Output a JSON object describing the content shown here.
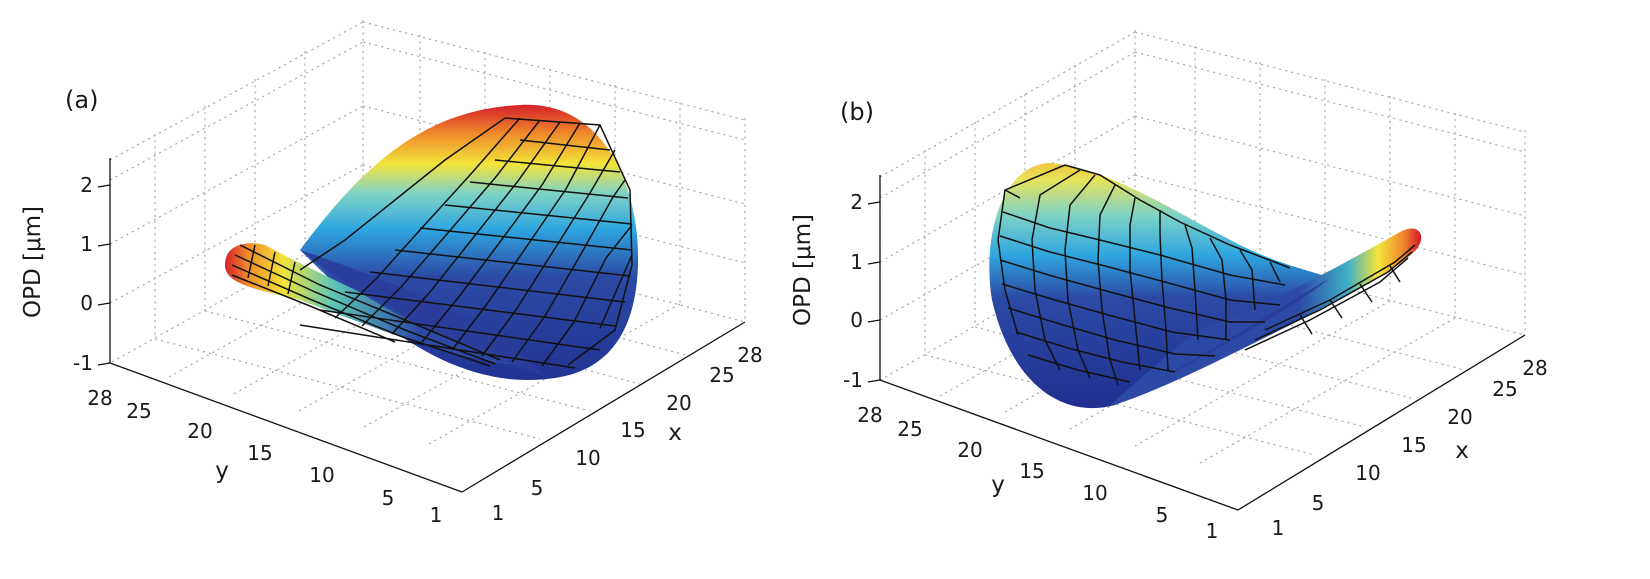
{
  "chart_data": [
    {
      "type": "surface",
      "panel_label": "(a)",
      "zlabel": "OPD [μm]",
      "xlabel": "x",
      "ylabel": "y",
      "x_ticks": [
        "1",
        "5",
        "10",
        "15",
        "20",
        "25",
        "28"
      ],
      "y_ticks": [
        "28",
        "25",
        "20",
        "15",
        "10",
        "5",
        "1"
      ],
      "z_ticks": [
        "-1",
        "0",
        "1",
        "2"
      ],
      "xlim": [
        1,
        28
      ],
      "ylim": [
        1,
        28
      ],
      "zlim": [
        -1,
        2.4
      ],
      "grid": true,
      "colormap": "jet",
      "surface": "saddle (astigmatism)",
      "z_range": [
        -0.9,
        2.4
      ]
    },
    {
      "type": "surface",
      "panel_label": "(b)",
      "zlabel": "OPD [μm]",
      "xlabel": "x",
      "ylabel": "y",
      "x_ticks": [
        "1",
        "5",
        "10",
        "15",
        "20",
        "25",
        "28"
      ],
      "y_ticks": [
        "28",
        "25",
        "20",
        "15",
        "10",
        "5",
        "1"
      ],
      "z_ticks": [
        "-1",
        "0",
        "1",
        "2"
      ],
      "xlim": [
        1,
        28
      ],
      "ylim": [
        1,
        28
      ],
      "zlim": [
        -1,
        2.4
      ],
      "grid": true,
      "colormap": "jet",
      "surface": "saddle (astigmatism, mirrored)",
      "z_range": [
        -0.9,
        2.4
      ]
    }
  ]
}
